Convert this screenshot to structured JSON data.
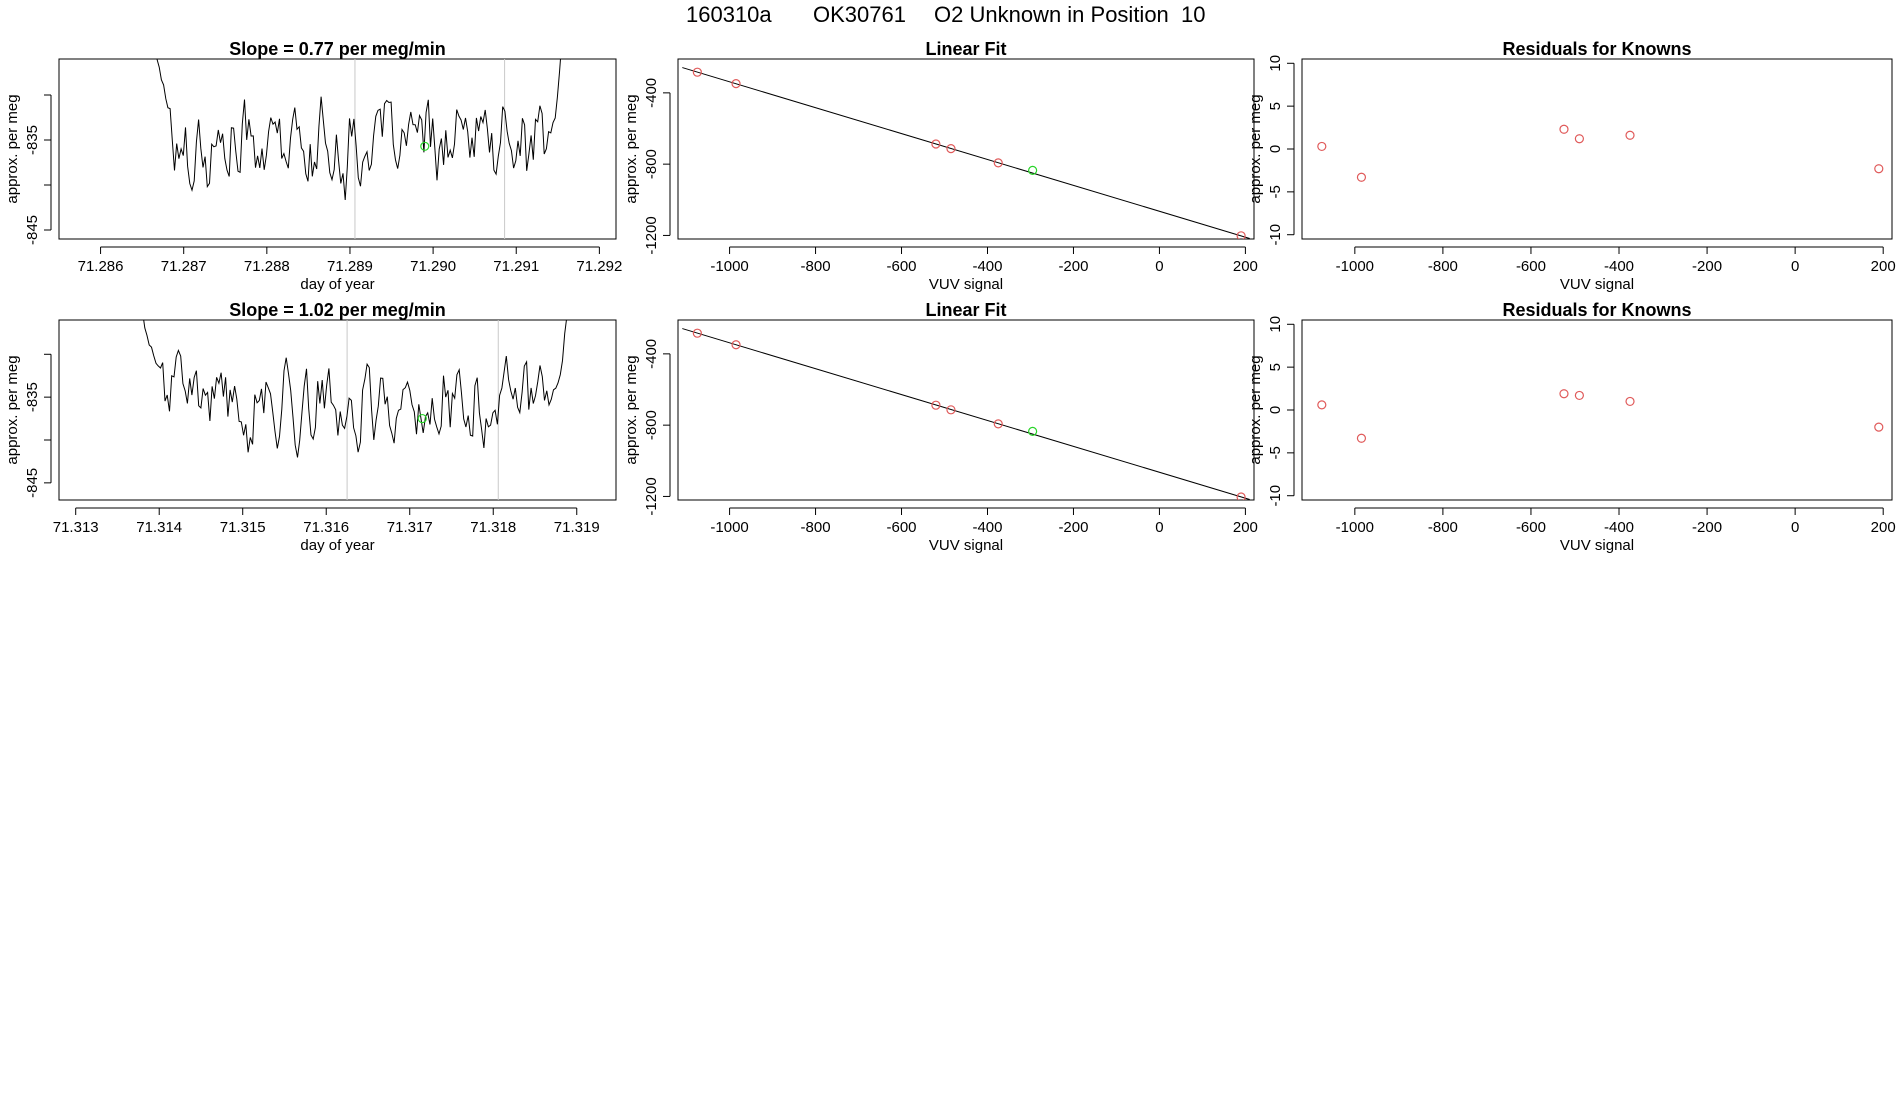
{
  "header": {
    "run_id": "160310a",
    "tank_id": "OK30761",
    "description": "O2 Unknown in Position  10"
  },
  "colors": {
    "known": "#e05a5a",
    "unknown": "#28d428",
    "line": "#000000",
    "marker_line": "#c8c8c8"
  },
  "chart_data": [
    {
      "type": "line",
      "title": "Slope =  0.77  per meg/min",
      "xlabel": "day of year",
      "ylabel": "approx. per meg",
      "xlim": [
        71.2855,
        71.2922
      ],
      "ylim": [
        -846,
        -826
      ],
      "xticks": [
        71.286,
        71.287,
        71.288,
        71.289,
        71.29,
        71.291,
        71.292
      ],
      "xtick_labels": [
        "71.286",
        "71.287",
        "71.288",
        "71.289",
        "71.290",
        "71.291",
        "71.292"
      ],
      "yticks": [
        -845,
        -840,
        -835,
        -830
      ],
      "ytick_labels": [
        "-845",
        "",
        "-835",
        ""
      ],
      "x_start": 71.2866,
      "x_end": 71.2916,
      "y_start": -819,
      "y_end": -819,
      "vlines": [
        71.28906,
        71.29086
      ],
      "unknown_point": {
        "x": 71.2899,
        "y": -835.7
      },
      "seed": 17
    },
    {
      "type": "scatter",
      "title": "Linear Fit",
      "xlabel": "VUV signal",
      "ylabel": "approx. per meg",
      "xlim": [
        -1120,
        220
      ],
      "ylim": [
        -1220,
        -210
      ],
      "xticks": [
        -1000,
        -800,
        -600,
        -400,
        -200,
        0,
        200
      ],
      "yticks": [
        -1200,
        -800,
        -400
      ],
      "fit_line": {
        "x": [
          -1110,
          210
        ],
        "y": [
          -258,
          -1217
        ]
      },
      "knowns": {
        "x": [
          -1075,
          -985,
          -520,
          -485,
          -375,
          190
        ],
        "y": [
          -284,
          -348,
          -687,
          -713,
          -793,
          -1202
        ]
      },
      "unknown": {
        "x": [
          -295
        ],
        "y": [
          -835
        ]
      }
    },
    {
      "type": "scatter",
      "title": "Residuals for Knowns",
      "xlabel": "VUV signal",
      "ylabel": "approx. per meg",
      "xlim": [
        -1120,
        220
      ],
      "ylim": [
        -10.5,
        10.5
      ],
      "xticks": [
        -1000,
        -800,
        -600,
        -400,
        -200,
        0,
        200
      ],
      "yticks": [
        -10,
        -5,
        0,
        5,
        10
      ],
      "knowns": {
        "x": [
          -1075,
          -985,
          -525,
          -490,
          -375,
          190
        ],
        "y": [
          0.3,
          -3.3,
          2.3,
          1.2,
          1.6,
          -2.3
        ]
      }
    },
    {
      "type": "line",
      "title": "Slope =  1.02  per meg/min",
      "xlabel": "day of year",
      "ylabel": "approx. per meg",
      "xlim": [
        71.3128,
        71.31947
      ],
      "ylim": [
        -847,
        -826
      ],
      "xticks": [
        71.313,
        71.314,
        71.315,
        71.316,
        71.317,
        71.318,
        71.319
      ],
      "xtick_labels": [
        "71.313",
        "71.314",
        "71.315",
        "71.316",
        "71.317",
        "71.318",
        "71.319"
      ],
      "yticks": [
        -845,
        -840,
        -835,
        -830
      ],
      "ytick_labels": [
        "-845",
        "",
        "-835",
        ""
      ],
      "x_start": 71.3138,
      "x_end": 71.31891,
      "y_start": -825,
      "y_end": -826,
      "vlines": [
        71.31625,
        71.31806
      ],
      "unknown_point": {
        "x": 71.31715,
        "y": -837.5
      },
      "seed": 41
    },
    {
      "type": "scatter",
      "title": "Linear Fit",
      "xlabel": "VUV signal",
      "ylabel": "approx. per meg",
      "xlim": [
        -1120,
        220
      ],
      "ylim": [
        -1220,
        -210
      ],
      "xticks": [
        -1000,
        -800,
        -600,
        -400,
        -200,
        0,
        200
      ],
      "yticks": [
        -1200,
        -800,
        -400
      ],
      "fit_line": {
        "x": [
          -1110,
          210
        ],
        "y": [
          -258,
          -1217
        ]
      },
      "knowns": {
        "x": [
          -1075,
          -985,
          -520,
          -485,
          -375,
          190
        ],
        "y": [
          -284,
          -349,
          -688,
          -714,
          -793,
          -1203
        ]
      },
      "unknown": {
        "x": [
          -295
        ],
        "y": [
          -835
        ]
      }
    },
    {
      "type": "scatter",
      "title": "Residuals for Knowns",
      "xlabel": "VUV signal",
      "ylabel": "approx. per meg",
      "xlim": [
        -1120,
        220
      ],
      "ylim": [
        -10.5,
        10.5
      ],
      "xticks": [
        -1000,
        -800,
        -600,
        -400,
        -200,
        0,
        200
      ],
      "yticks": [
        -10,
        -5,
        0,
        5,
        10
      ],
      "knowns": {
        "x": [
          -1075,
          -985,
          -525,
          -490,
          -375,
          190
        ],
        "y": [
          0.6,
          -3.3,
          1.9,
          1.7,
          1.0,
          -2.0
        ]
      }
    }
  ]
}
